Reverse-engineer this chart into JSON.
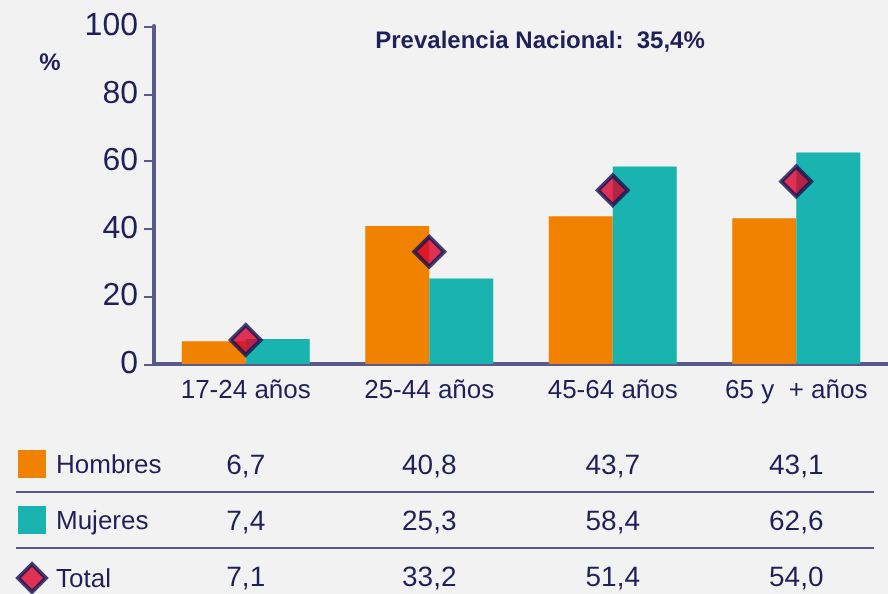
{
  "chart_data": {
    "type": "bar",
    "ylabel": "%",
    "annotations": [
      "Prevalencia Nacional:  35,4%"
    ],
    "categories": [
      "17-24 años",
      "25-44 años",
      "45-64 años",
      "65 y  + años"
    ],
    "series": [
      {
        "name": "Hombres",
        "color": "#f08200",
        "values": [
          6.7,
          40.8,
          43.7,
          43.1
        ],
        "value_labels": [
          "6,7",
          "40,8",
          "43,7",
          "43,1"
        ]
      },
      {
        "name": "Mujeres",
        "color": "#1ab4b0",
        "values": [
          7.4,
          25.3,
          58.4,
          62.6
        ],
        "value_labels": [
          "7,4",
          "25,3",
          "58,4",
          "62,6"
        ]
      },
      {
        "name": "Total",
        "type": "scatter",
        "marker": "diamond",
        "color": "#d8002a",
        "values": [
          7.1,
          33.2,
          51.4,
          54.0
        ],
        "value_labels": [
          "7,1",
          "33,2",
          "51,4",
          "54,0"
        ]
      }
    ],
    "ylim": [
      0,
      100
    ],
    "yticks": [
      0,
      20,
      40,
      60,
      80,
      100
    ],
    "grid": false,
    "legend": "bottom left"
  }
}
